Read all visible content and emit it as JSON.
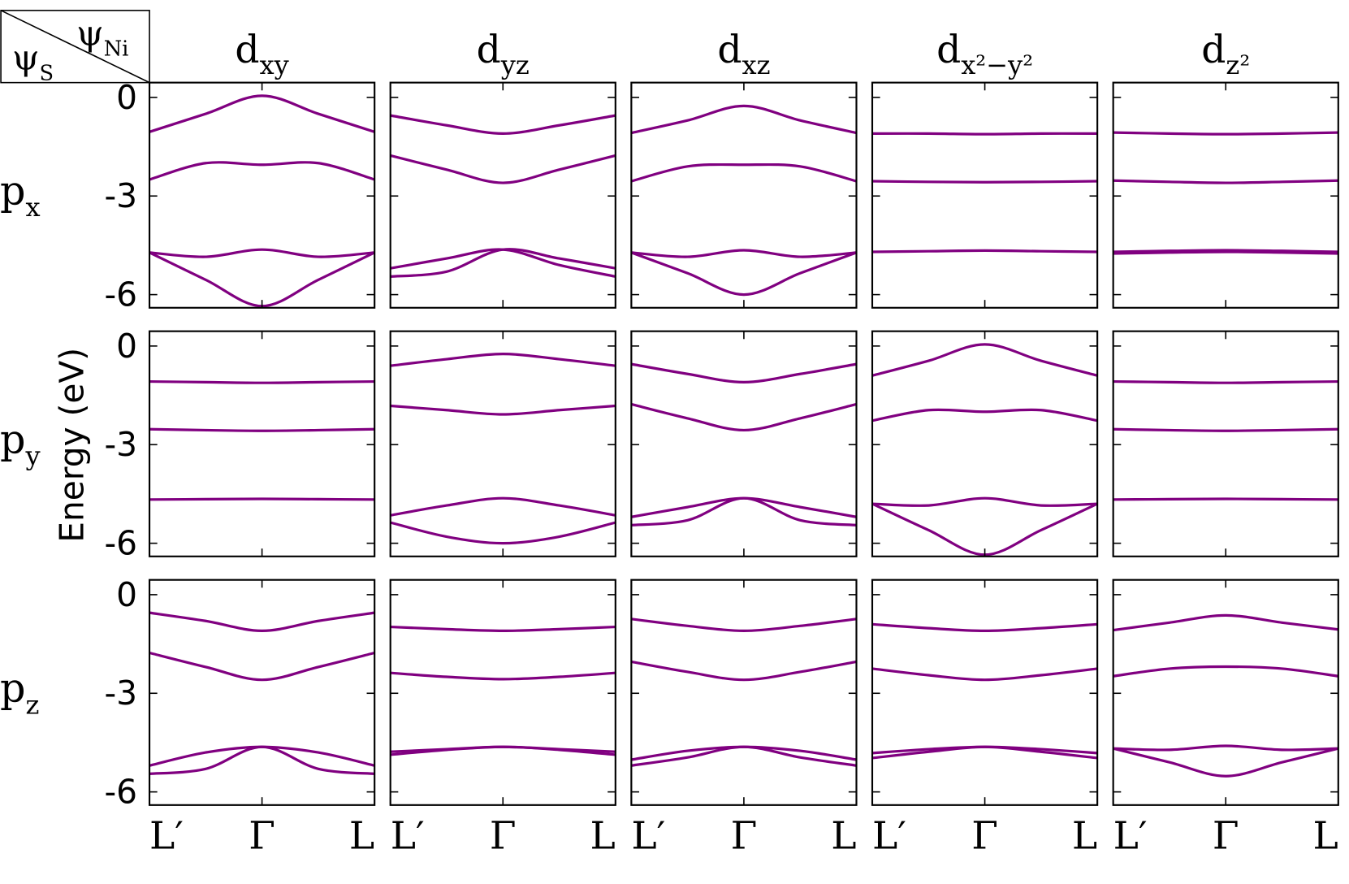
{
  "corner": {
    "row_symbol": "ψ",
    "row_sub": "S",
    "col_symbol": "ψ",
    "col_sub": "Ni"
  },
  "ylabel": "Energy (eV)",
  "columns": [
    {
      "text": "d",
      "sub": "xy"
    },
    {
      "text": "d",
      "sub": "yz"
    },
    {
      "text": "d",
      "sub": "xz"
    },
    {
      "text": "d",
      "sub": "x²−y²"
    },
    {
      "text": "d",
      "sub": "z²"
    }
  ],
  "rows": [
    {
      "text": "p",
      "sub": "x"
    },
    {
      "text": "p",
      "sub": "y"
    },
    {
      "text": "p",
      "sub": "z"
    }
  ],
  "chart_data": [
    {
      "type": "line",
      "x": [
        -1,
        -0.5,
        0,
        0.5,
        1
      ],
      "xlim": [
        -1,
        1
      ],
      "ylim": [
        -6.4,
        0.45
      ],
      "yticks": [
        0,
        -3,
        -6
      ],
      "xticks": [
        {
          "value": -1,
          "label": "L′"
        },
        {
          "value": 0,
          "label": "Γ"
        },
        {
          "value": 1,
          "label": "L"
        }
      ],
      "series": [
        {
          "color": "#800080",
          "values": [
            -1.05,
            -0.5,
            0.05,
            -0.5,
            -1.05
          ]
        },
        {
          "color": "#800080",
          "values": [
            -2.5,
            -2.0,
            -2.05,
            -2.0,
            -2.5
          ]
        },
        {
          "color": "#800080",
          "values": [
            -4.72,
            -4.85,
            -4.63,
            -4.85,
            -4.72
          ]
        },
        {
          "color": "#800080",
          "values": [
            -4.72,
            -5.55,
            -6.35,
            -5.55,
            -4.72
          ]
        }
      ]
    },
    {
      "type": "line",
      "x": [
        -1,
        -0.5,
        0,
        0.5,
        1
      ],
      "xlim": [
        -1,
        1
      ],
      "ylim": [
        -6.4,
        0.45
      ],
      "yticks": [
        0,
        -3,
        -6
      ],
      "xticks": [
        {
          "value": -1,
          "label": "L′"
        },
        {
          "value": 0,
          "label": "Γ"
        },
        {
          "value": 1,
          "label": "L"
        }
      ],
      "series": [
        {
          "color": "#800080",
          "values": [
            -0.55,
            -0.85,
            -1.1,
            -0.85,
            -0.55
          ]
        },
        {
          "color": "#800080",
          "values": [
            -1.77,
            -2.2,
            -2.6,
            -2.2,
            -1.77
          ]
        },
        {
          "color": "#800080",
          "values": [
            -5.2,
            -4.9,
            -4.63,
            -5.1,
            -5.45
          ]
        },
        {
          "color": "#800080",
          "values": [
            -5.45,
            -5.3,
            -4.63,
            -4.9,
            -5.2
          ]
        }
      ]
    },
    {
      "type": "line",
      "x": [
        -1,
        -0.5,
        0,
        0.5,
        1
      ],
      "xlim": [
        -1,
        1
      ],
      "ylim": [
        -6.4,
        0.45
      ],
      "yticks": [
        0,
        -3,
        -6
      ],
      "xticks": [
        {
          "value": -1,
          "label": "L′"
        },
        {
          "value": 0,
          "label": "Γ"
        },
        {
          "value": 1,
          "label": "L"
        }
      ],
      "series": [
        {
          "color": "#800080",
          "values": [
            -1.08,
            -0.7,
            -0.26,
            -0.7,
            -1.08
          ]
        },
        {
          "color": "#800080",
          "values": [
            -2.55,
            -2.1,
            -2.05,
            -2.1,
            -2.55
          ]
        },
        {
          "color": "#800080",
          "values": [
            -4.72,
            -4.85,
            -4.65,
            -4.85,
            -4.72
          ]
        },
        {
          "color": "#800080",
          "values": [
            -4.72,
            -5.35,
            -6.0,
            -5.35,
            -4.72
          ]
        }
      ]
    },
    {
      "type": "line",
      "x": [
        -1,
        -0.5,
        0,
        0.5,
        1
      ],
      "xlim": [
        -1,
        1
      ],
      "ylim": [
        -6.4,
        0.45
      ],
      "yticks": [
        0,
        -3,
        -6
      ],
      "xticks": [
        {
          "value": -1,
          "label": "L′"
        },
        {
          "value": 0,
          "label": "Γ"
        },
        {
          "value": 1,
          "label": "L"
        }
      ],
      "series": [
        {
          "color": "#800080",
          "values": [
            -1.1,
            -1.1,
            -1.12,
            -1.1,
            -1.1
          ]
        },
        {
          "color": "#800080",
          "values": [
            -2.55,
            -2.57,
            -2.58,
            -2.57,
            -2.55
          ]
        },
        {
          "color": "#800080",
          "values": [
            -4.7,
            -4.68,
            -4.66,
            -4.68,
            -4.7
          ]
        }
      ]
    },
    {
      "type": "line",
      "x": [
        -1,
        -0.5,
        0,
        0.5,
        1
      ],
      "xlim": [
        -1,
        1
      ],
      "ylim": [
        -6.4,
        0.45
      ],
      "yticks": [
        0,
        -3,
        -6
      ],
      "xticks": [
        {
          "value": -1,
          "label": "L′"
        },
        {
          "value": 0,
          "label": "Γ"
        },
        {
          "value": 1,
          "label": "L"
        }
      ],
      "series": [
        {
          "color": "#800080",
          "values": [
            -1.07,
            -1.1,
            -1.12,
            -1.1,
            -1.07
          ]
        },
        {
          "color": "#800080",
          "values": [
            -2.53,
            -2.57,
            -2.6,
            -2.57,
            -2.53
          ]
        },
        {
          "color": "#800080",
          "values": [
            -4.7,
            -4.67,
            -4.65,
            -4.67,
            -4.7
          ]
        },
        {
          "color": "#800080",
          "values": [
            -4.75,
            -4.72,
            -4.7,
            -4.72,
            -4.75
          ]
        }
      ]
    },
    {
      "type": "line",
      "x": [
        -1,
        -0.5,
        0,
        0.5,
        1
      ],
      "xlim": [
        -1,
        1
      ],
      "ylim": [
        -6.4,
        0.45
      ],
      "yticks": [
        0,
        -3,
        -6
      ],
      "xticks": [
        {
          "value": -1,
          "label": "L′"
        },
        {
          "value": 0,
          "label": "Γ"
        },
        {
          "value": 1,
          "label": "L"
        }
      ],
      "series": [
        {
          "color": "#800080",
          "values": [
            -1.08,
            -1.1,
            -1.12,
            -1.1,
            -1.08
          ]
        },
        {
          "color": "#800080",
          "values": [
            -2.53,
            -2.56,
            -2.58,
            -2.56,
            -2.53
          ]
        },
        {
          "color": "#800080",
          "values": [
            -4.67,
            -4.66,
            -4.65,
            -4.66,
            -4.67
          ]
        }
      ]
    },
    {
      "type": "line",
      "x": [
        -1,
        -0.5,
        0,
        0.5,
        1
      ],
      "xlim": [
        -1,
        1
      ],
      "ylim": [
        -6.4,
        0.45
      ],
      "yticks": [
        0,
        -3,
        -6
      ],
      "xticks": [
        {
          "value": -1,
          "label": "L′"
        },
        {
          "value": 0,
          "label": "Γ"
        },
        {
          "value": 1,
          "label": "L"
        }
      ],
      "series": [
        {
          "color": "#800080",
          "values": [
            -0.6,
            -0.4,
            -0.24,
            -0.4,
            -0.6
          ]
        },
        {
          "color": "#800080",
          "values": [
            -1.82,
            -1.95,
            -2.08,
            -1.95,
            -1.82
          ]
        },
        {
          "color": "#800080",
          "values": [
            -5.15,
            -4.85,
            -4.63,
            -4.85,
            -5.15
          ]
        },
        {
          "color": "#800080",
          "values": [
            -5.37,
            -5.8,
            -6.0,
            -5.8,
            -5.37
          ]
        }
      ]
    },
    {
      "type": "line",
      "x": [
        -1,
        -0.5,
        0,
        0.5,
        1
      ],
      "xlim": [
        -1,
        1
      ],
      "ylim": [
        -6.4,
        0.45
      ],
      "yticks": [
        0,
        -3,
        -6
      ],
      "xticks": [
        {
          "value": -1,
          "label": "L′"
        },
        {
          "value": 0,
          "label": "Γ"
        },
        {
          "value": 1,
          "label": "L"
        }
      ],
      "series": [
        {
          "color": "#800080",
          "values": [
            -0.55,
            -0.85,
            -1.1,
            -0.85,
            -0.55
          ]
        },
        {
          "color": "#800080",
          "values": [
            -1.77,
            -2.2,
            -2.56,
            -2.2,
            -1.77
          ]
        },
        {
          "color": "#800080",
          "values": [
            -5.2,
            -4.9,
            -4.63,
            -4.9,
            -5.2
          ]
        },
        {
          "color": "#800080",
          "values": [
            -5.45,
            -5.3,
            -4.63,
            -5.3,
            -5.45
          ]
        }
      ]
    },
    {
      "type": "line",
      "x": [
        -1,
        -0.5,
        0,
        0.5,
        1
      ],
      "xlim": [
        -1,
        1
      ],
      "ylim": [
        -6.4,
        0.45
      ],
      "yticks": [
        0,
        -3,
        -6
      ],
      "xticks": [
        {
          "value": -1,
          "label": "L′"
        },
        {
          "value": 0,
          "label": "Γ"
        },
        {
          "value": 1,
          "label": "L"
        }
      ],
      "series": [
        {
          "color": "#800080",
          "values": [
            -0.9,
            -0.45,
            0.05,
            -0.45,
            -0.9
          ]
        },
        {
          "color": "#800080",
          "values": [
            -2.27,
            -1.95,
            -2.0,
            -1.95,
            -2.27
          ]
        },
        {
          "color": "#800080",
          "values": [
            -4.8,
            -4.85,
            -4.63,
            -4.85,
            -4.8
          ]
        },
        {
          "color": "#800080",
          "values": [
            -4.8,
            -5.6,
            -6.35,
            -5.6,
            -4.8
          ]
        }
      ]
    },
    {
      "type": "line",
      "x": [
        -1,
        -0.5,
        0,
        0.5,
        1
      ],
      "xlim": [
        -1,
        1
      ],
      "ylim": [
        -6.4,
        0.45
      ],
      "yticks": [
        0,
        -3,
        -6
      ],
      "xticks": [
        {
          "value": -1,
          "label": "L′"
        },
        {
          "value": 0,
          "label": "Γ"
        },
        {
          "value": 1,
          "label": "L"
        }
      ],
      "series": [
        {
          "color": "#800080",
          "values": [
            -1.08,
            -1.1,
            -1.12,
            -1.1,
            -1.08
          ]
        },
        {
          "color": "#800080",
          "values": [
            -2.53,
            -2.56,
            -2.58,
            -2.56,
            -2.53
          ]
        },
        {
          "color": "#800080",
          "values": [
            -4.67,
            -4.66,
            -4.65,
            -4.66,
            -4.67
          ]
        }
      ]
    },
    {
      "type": "line",
      "x": [
        -1,
        -0.5,
        0,
        0.5,
        1
      ],
      "xlim": [
        -1,
        1
      ],
      "ylim": [
        -6.4,
        0.45
      ],
      "yticks": [
        0,
        -3,
        -6
      ],
      "xticks": [
        {
          "value": -1,
          "label": "L′"
        },
        {
          "value": 0,
          "label": "Γ"
        },
        {
          "value": 1,
          "label": "L"
        }
      ],
      "series": [
        {
          "color": "#800080",
          "values": [
            -0.55,
            -0.8,
            -1.1,
            -0.8,
            -0.55
          ]
        },
        {
          "color": "#800080",
          "values": [
            -1.77,
            -2.2,
            -2.59,
            -2.2,
            -1.77
          ]
        },
        {
          "color": "#800080",
          "values": [
            -5.2,
            -4.8,
            -4.63,
            -4.8,
            -5.2
          ]
        },
        {
          "color": "#800080",
          "values": [
            -5.45,
            -5.3,
            -4.63,
            -5.3,
            -5.45
          ]
        }
      ]
    },
    {
      "type": "line",
      "x": [
        -1,
        -0.5,
        0,
        0.5,
        1
      ],
      "xlim": [
        -1,
        1
      ],
      "ylim": [
        -6.4,
        0.45
      ],
      "yticks": [
        0,
        -3,
        -6
      ],
      "xticks": [
        {
          "value": -1,
          "label": "L′"
        },
        {
          "value": 0,
          "label": "Γ"
        },
        {
          "value": 1,
          "label": "L"
        }
      ],
      "series": [
        {
          "color": "#800080",
          "values": [
            -0.98,
            -1.05,
            -1.1,
            -1.05,
            -0.98
          ]
        },
        {
          "color": "#800080",
          "values": [
            -2.38,
            -2.5,
            -2.57,
            -2.5,
            -2.38
          ]
        },
        {
          "color": "#800080",
          "values": [
            -4.78,
            -4.7,
            -4.63,
            -4.7,
            -4.78
          ]
        },
        {
          "color": "#800080",
          "values": [
            -4.87,
            -4.72,
            -4.63,
            -4.72,
            -4.87
          ]
        }
      ]
    },
    {
      "type": "line",
      "x": [
        -1,
        -0.5,
        0,
        0.5,
        1
      ],
      "xlim": [
        -1,
        1
      ],
      "ylim": [
        -6.4,
        0.45
      ],
      "yticks": [
        0,
        -3,
        -6
      ],
      "xticks": [
        {
          "value": -1,
          "label": "L′"
        },
        {
          "value": 0,
          "label": "Γ"
        },
        {
          "value": 1,
          "label": "L"
        }
      ],
      "series": [
        {
          "color": "#800080",
          "values": [
            -0.74,
            -0.95,
            -1.1,
            -0.95,
            -0.74
          ]
        },
        {
          "color": "#800080",
          "values": [
            -2.04,
            -2.35,
            -2.59,
            -2.35,
            -2.04
          ]
        },
        {
          "color": "#800080",
          "values": [
            -5.02,
            -4.75,
            -4.63,
            -4.75,
            -5.02
          ]
        },
        {
          "color": "#800080",
          "values": [
            -5.2,
            -4.95,
            -4.63,
            -4.95,
            -5.2
          ]
        }
      ]
    },
    {
      "type": "line",
      "x": [
        -1,
        -0.5,
        0,
        0.5,
        1
      ],
      "xlim": [
        -1,
        1
      ],
      "ylim": [
        -6.4,
        0.45
      ],
      "yticks": [
        0,
        -3,
        -6
      ],
      "xticks": [
        {
          "value": -1,
          "label": "L′"
        },
        {
          "value": 0,
          "label": "Γ"
        },
        {
          "value": 1,
          "label": "L"
        }
      ],
      "series": [
        {
          "color": "#800080",
          "values": [
            -0.9,
            -1.02,
            -1.1,
            -1.02,
            -0.9
          ]
        },
        {
          "color": "#800080",
          "values": [
            -2.25,
            -2.45,
            -2.59,
            -2.45,
            -2.25
          ]
        },
        {
          "color": "#800080",
          "values": [
            -4.82,
            -4.7,
            -4.63,
            -4.7,
            -4.82
          ]
        },
        {
          "color": "#800080",
          "values": [
            -4.97,
            -4.78,
            -4.63,
            -4.78,
            -4.97
          ]
        }
      ]
    },
    {
      "type": "line",
      "x": [
        -1,
        -0.5,
        0,
        0.5,
        1
      ],
      "xlim": [
        -1,
        1
      ],
      "ylim": [
        -6.4,
        0.45
      ],
      "yticks": [
        0,
        -3,
        -6
      ],
      "xticks": [
        {
          "value": -1,
          "label": "L′"
        },
        {
          "value": 0,
          "label": "Γ"
        },
        {
          "value": 1,
          "label": "L"
        }
      ],
      "series": [
        {
          "color": "#800080",
          "values": [
            -1.08,
            -0.85,
            -0.63,
            -0.85,
            -1.06
          ]
        },
        {
          "color": "#800080",
          "values": [
            -2.48,
            -2.25,
            -2.19,
            -2.25,
            -2.48
          ]
        },
        {
          "color": "#800080",
          "values": [
            -4.68,
            -4.72,
            -4.6,
            -4.72,
            -4.68
          ]
        },
        {
          "color": "#800080",
          "values": [
            -4.68,
            -5.1,
            -5.52,
            -5.1,
            -4.68
          ]
        }
      ]
    }
  ]
}
